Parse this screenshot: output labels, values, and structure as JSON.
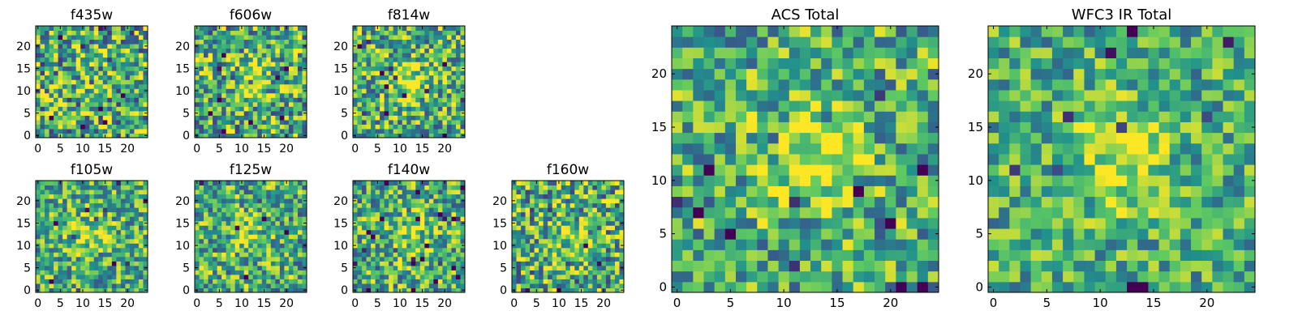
{
  "figure": {
    "background": "#ffffff",
    "colormap": "viridis",
    "colormap_stops": [
      "#440154",
      "#3b528b",
      "#21918c",
      "#5ec962",
      "#fde725"
    ]
  },
  "chart_data": [
    {
      "type": "heatmap",
      "id": "f435w",
      "title": "f435w",
      "grid_size": 25,
      "xlim": [
        0,
        24
      ],
      "ylim": [
        0,
        24
      ],
      "xticks": [
        0,
        5,
        10,
        15,
        20
      ],
      "yticks": [
        0,
        5,
        10,
        15,
        20
      ],
      "grid": false,
      "source_strength": 0.05,
      "noise_level": 0.9,
      "seed": 11
    },
    {
      "type": "heatmap",
      "id": "f606w",
      "title": "f606w",
      "grid_size": 25,
      "xlim": [
        0,
        24
      ],
      "ylim": [
        0,
        24
      ],
      "xticks": [
        0,
        5,
        10,
        15,
        20
      ],
      "yticks": [
        0,
        5,
        10,
        15,
        20
      ],
      "grid": false,
      "source_strength": 0.45,
      "noise_level": 0.85,
      "seed": 23
    },
    {
      "type": "heatmap",
      "id": "f814w",
      "title": "f814w",
      "grid_size": 25,
      "xlim": [
        0,
        24
      ],
      "ylim": [
        0,
        24
      ],
      "xticks": [
        0,
        5,
        10,
        15,
        20
      ],
      "yticks": [
        0,
        5,
        10,
        15,
        20
      ],
      "grid": false,
      "source_strength": 0.6,
      "noise_level": 0.8,
      "seed": 37
    },
    {
      "type": "heatmap",
      "id": "f105w",
      "title": "f105w",
      "grid_size": 25,
      "xlim": [
        0,
        24
      ],
      "ylim": [
        0,
        24
      ],
      "xticks": [
        0,
        5,
        10,
        15,
        20
      ],
      "yticks": [
        0,
        5,
        10,
        15,
        20
      ],
      "grid": false,
      "source_strength": 0.4,
      "noise_level": 0.7,
      "seed": 41
    },
    {
      "type": "heatmap",
      "id": "f125w",
      "title": "f125w",
      "grid_size": 25,
      "xlim": [
        0,
        24
      ],
      "ylim": [
        0,
        24
      ],
      "xticks": [
        0,
        5,
        10,
        15,
        20
      ],
      "yticks": [
        0,
        5,
        10,
        15,
        20
      ],
      "grid": false,
      "source_strength": 0.35,
      "noise_level": 0.75,
      "seed": 53
    },
    {
      "type": "heatmap",
      "id": "f140w",
      "title": "f140w",
      "grid_size": 25,
      "xlim": [
        0,
        24
      ],
      "ylim": [
        0,
        24
      ],
      "xticks": [
        0,
        5,
        10,
        15,
        20
      ],
      "yticks": [
        0,
        5,
        10,
        15,
        20
      ],
      "grid": false,
      "source_strength": 0.4,
      "noise_level": 0.75,
      "seed": 67
    },
    {
      "type": "heatmap",
      "id": "f160w",
      "title": "f160w",
      "grid_size": 25,
      "xlim": [
        0,
        24
      ],
      "ylim": [
        0,
        24
      ],
      "xticks": [
        0,
        5,
        10,
        15,
        20
      ],
      "yticks": [
        0,
        5,
        10,
        15,
        20
      ],
      "grid": false,
      "source_strength": 0.35,
      "noise_level": 0.85,
      "seed": 79
    },
    {
      "type": "heatmap",
      "id": "acs_total",
      "title": "ACS Total",
      "grid_size": 25,
      "xlim": [
        0,
        24
      ],
      "ylim": [
        0,
        24
      ],
      "xticks": [
        0,
        5,
        10,
        15,
        20
      ],
      "yticks": [
        0,
        5,
        10,
        15,
        20
      ],
      "grid": false,
      "source_strength": 0.55,
      "noise_level": 0.7,
      "seed": 83
    },
    {
      "type": "heatmap",
      "id": "wfc3_ir_total",
      "title": "WFC3 IR Total",
      "grid_size": 25,
      "xlim": [
        0,
        24
      ],
      "ylim": [
        0,
        24
      ],
      "xticks": [
        0,
        5,
        10,
        15,
        20
      ],
      "yticks": [
        0,
        5,
        10,
        15,
        20
      ],
      "grid": false,
      "source_strength": 0.55,
      "noise_level": 0.6,
      "seed": 97
    }
  ]
}
